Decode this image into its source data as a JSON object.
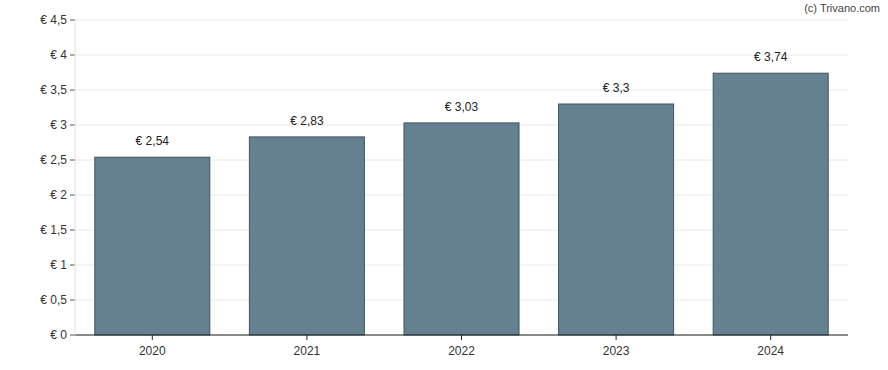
{
  "chart_data": {
    "type": "bar",
    "categories": [
      "2020",
      "2021",
      "2022",
      "2023",
      "2024"
    ],
    "values": [
      2.54,
      2.83,
      3.03,
      3.3,
      3.74
    ],
    "value_labels": [
      "€ 2,54",
      "€ 2,83",
      "€ 3,03",
      "€ 3,3",
      "€ 3,74"
    ],
    "color": "#65808f",
    "ylim": [
      0,
      4.5
    ],
    "yticks": [
      {
        "value": 0,
        "label": "€ 0"
      },
      {
        "value": 0.5,
        "label": "€ 0,5"
      },
      {
        "value": 1,
        "label": "€ 1"
      },
      {
        "value": 1.5,
        "label": "€ 1,5"
      },
      {
        "value": 2,
        "label": "€ 2"
      },
      {
        "value": 2.5,
        "label": "€ 2,5"
      },
      {
        "value": 3,
        "label": "€ 3"
      },
      {
        "value": 3.5,
        "label": "€ 3,5"
      },
      {
        "value": 4,
        "label": "€ 4"
      },
      {
        "value": 4.5,
        "label": "€ 4,5"
      }
    ],
    "grid": true,
    "data_labels": true,
    "annotations": [
      "(c) Trivano.com"
    ]
  }
}
